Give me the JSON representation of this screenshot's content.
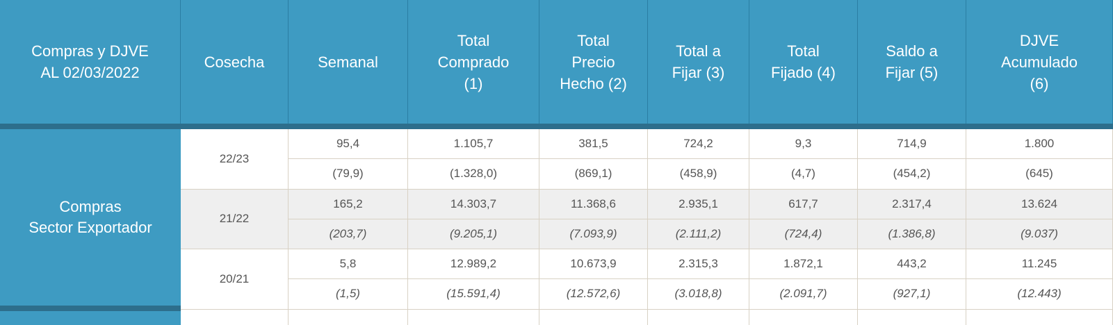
{
  "header": {
    "columns": [
      [
        "Compras y DJVE",
        "AL 02/03/2022"
      ],
      [
        "Cosecha"
      ],
      [
        "Semanal"
      ],
      [
        "Total",
        "Comprado",
        "(1)"
      ],
      [
        "Total",
        "Precio",
        "Hecho (2)"
      ],
      [
        "Total a",
        "Fijar (3)"
      ],
      [
        "Total",
        "Fijado (4)"
      ],
      [
        "Saldo a",
        "Fijar (5)"
      ],
      [
        "DJVE",
        "Acumulado",
        "(6)"
      ]
    ]
  },
  "table": {
    "group": [
      "Compras",
      "Sector Exportador"
    ],
    "rows": [
      {
        "cosecha": "22/23",
        "current": [
          "95,4",
          "1.105,7",
          "381,5",
          "724,2",
          "9,3",
          "714,9",
          "1.800"
        ],
        "previous": [
          "(79,9)",
          "(1.328,0)",
          "(869,1)",
          "(458,9)",
          "(4,7)",
          "(454,2)",
          "(645)"
        ]
      },
      {
        "cosecha": "21/22",
        "current": [
          "165,2",
          "14.303,7",
          "11.368,6",
          "2.935,1",
          "617,7",
          "2.317,4",
          "13.624"
        ],
        "previous": [
          "(203,7)",
          "(9.205,1)",
          "(7.093,9)",
          "(2.111,2)",
          "(724,4)",
          "(1.386,8)",
          "(9.037)"
        ]
      },
      {
        "cosecha": "20/21",
        "current": [
          "5,8",
          "12.989,2",
          "10.673,9",
          "2.315,3",
          "1.872,1",
          "443,2",
          "11.245"
        ],
        "previous": [
          "(1,5)",
          "(15.591,4)",
          "(12.572,6)",
          "(3.018,8)",
          "(2.091,7)",
          "(927,1)",
          "(12.443)"
        ]
      }
    ]
  }
}
